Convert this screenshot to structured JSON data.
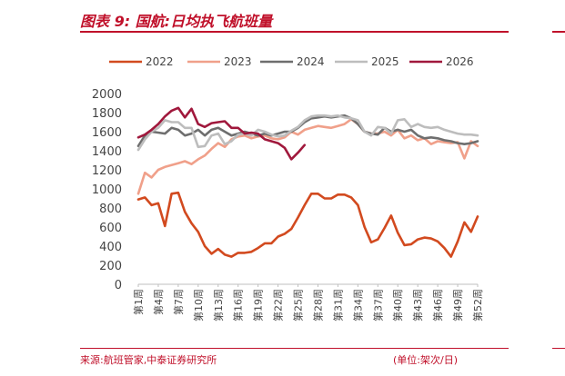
{
  "figure": {
    "title": "图表 9:  国航:日均执飞航班量",
    "source": "来源:航班管家,中泰证券研究所",
    "unit": "(单位:架次/日)",
    "accent_color": "#c0102a"
  },
  "chart_data": {
    "type": "line",
    "title": "",
    "xlabel": "",
    "ylabel": "",
    "ylim": [
      0,
      2000
    ],
    "yticks": [
      0,
      200,
      400,
      600,
      800,
      1000,
      1200,
      1400,
      1600,
      1800,
      2000
    ],
    "xlim": [
      1,
      52
    ],
    "x_tick_labels": [
      {
        "week": 1,
        "label": "第1周"
      },
      {
        "week": 4,
        "label": "第4周"
      },
      {
        "week": 7,
        "label": "第7周"
      },
      {
        "week": 10,
        "label": "第10周"
      },
      {
        "week": 13,
        "label": "第13周"
      },
      {
        "week": 16,
        "label": "第16周"
      },
      {
        "week": 19,
        "label": "第19周"
      },
      {
        "week": 22,
        "label": "第22周"
      },
      {
        "week": 25,
        "label": "第25周"
      },
      {
        "week": 28,
        "label": "第28周"
      },
      {
        "week": 31,
        "label": "第31周"
      },
      {
        "week": 34,
        "label": "第34周"
      },
      {
        "week": 37,
        "label": "第37周"
      },
      {
        "week": 40,
        "label": "第40周"
      },
      {
        "week": 43,
        "label": "第43周"
      },
      {
        "week": 46,
        "label": "第46周"
      },
      {
        "week": 49,
        "label": "第49周"
      },
      {
        "week": 52,
        "label": "第52周"
      }
    ],
    "grid": false,
    "legend_position": "top",
    "series": [
      {
        "name": "2022",
        "color": "#d24a1f",
        "values": [
          890,
          910,
          830,
          850,
          610,
          950,
          960,
          760,
          640,
          550,
          400,
          320,
          370,
          310,
          290,
          330,
          330,
          340,
          380,
          430,
          430,
          500,
          530,
          580,
          700,
          830,
          950,
          950,
          900,
          900,
          940,
          940,
          910,
          830,
          600,
          440,
          470,
          590,
          720,
          540,
          410,
          420,
          470,
          490,
          480,
          450,
          380,
          290,
          450,
          650,
          550,
          710
        ]
      },
      {
        "name": "2023",
        "color": "#f0a08a",
        "values": [
          950,
          1170,
          1120,
          1200,
          1230,
          1250,
          1270,
          1290,
          1260,
          1310,
          1350,
          1420,
          1480,
          1440,
          1520,
          1550,
          1560,
          1530,
          1550,
          1560,
          1530,
          1520,
          1540,
          1600,
          1570,
          1620,
          1640,
          1660,
          1650,
          1640,
          1660,
          1680,
          1730,
          1680,
          1600,
          1580,
          1580,
          1600,
          1560,
          1620,
          1530,
          1560,
          1510,
          1530,
          1470,
          1500,
          1490,
          1480,
          1490,
          1320,
          1500,
          1450
        ]
      },
      {
        "name": "2024",
        "color": "#6e6e6e",
        "values": [
          1450,
          1560,
          1600,
          1590,
          1580,
          1640,
          1620,
          1560,
          1580,
          1620,
          1560,
          1620,
          1640,
          1600,
          1560,
          1580,
          1600,
          1580,
          1560,
          1580,
          1560,
          1580,
          1600,
          1600,
          1640,
          1700,
          1740,
          1750,
          1760,
          1750,
          1760,
          1770,
          1740,
          1680,
          1600,
          1580,
          1570,
          1640,
          1600,
          1620,
          1600,
          1620,
          1560,
          1530,
          1540,
          1530,
          1510,
          1500,
          1480,
          1470,
          1480,
          1500
        ]
      },
      {
        "name": "2025",
        "color": "#bdbdbd",
        "values": [
          1410,
          1520,
          1600,
          1640,
          1720,
          1700,
          1700,
          1640,
          1640,
          1440,
          1450,
          1560,
          1580,
          1470,
          1500,
          1570,
          1580,
          1560,
          1620,
          1600,
          1570,
          1550,
          1560,
          1610,
          1650,
          1720,
          1760,
          1770,
          1770,
          1760,
          1770,
          1750,
          1740,
          1720,
          1600,
          1560,
          1650,
          1640,
          1580,
          1720,
          1730,
          1650,
          1680,
          1650,
          1640,
          1650,
          1620,
          1600,
          1580,
          1570,
          1570,
          1560
        ]
      },
      {
        "name": "2026",
        "color": "#a0183c",
        "values": [
          1540,
          1570,
          1620,
          1680,
          1760,
          1820,
          1850,
          1750,
          1840,
          1680,
          1650,
          1690,
          1700,
          1710,
          1640,
          1640,
          1580,
          1590,
          1580,
          1520,
          1500,
          1480,
          1430,
          1310,
          1380,
          1460
        ]
      }
    ]
  }
}
